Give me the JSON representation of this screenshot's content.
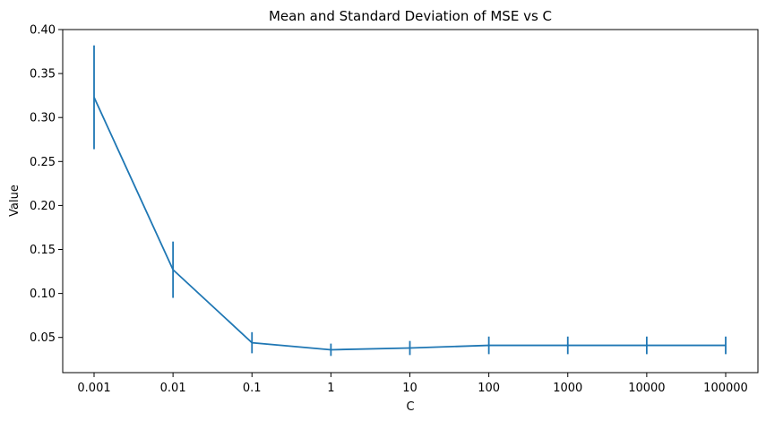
{
  "chart_data": {
    "type": "line",
    "title": "Mean and Standard Deviation of MSE vs C",
    "xlabel": "C",
    "ylabel": "Value",
    "categories": [
      "0.001",
      "0.01",
      "0.1",
      "1",
      "10",
      "100",
      "1000",
      "10000",
      "100000"
    ],
    "series": [
      {
        "values": [
          0.323,
          0.127,
          0.044,
          0.036,
          0.038,
          0.041,
          0.041,
          0.041,
          0.041
        ],
        "errors": [
          0.059,
          0.032,
          0.012,
          0.007,
          0.008,
          0.01,
          0.01,
          0.01,
          0.01
        ],
        "color": "#1f77b4"
      }
    ],
    "ylim": [
      0.01,
      0.4
    ],
    "yticks": [
      "0.05",
      "0.10",
      "0.15",
      "0.20",
      "0.25",
      "0.30",
      "0.35",
      "0.40"
    ],
    "grid": false,
    "legend": "none"
  }
}
